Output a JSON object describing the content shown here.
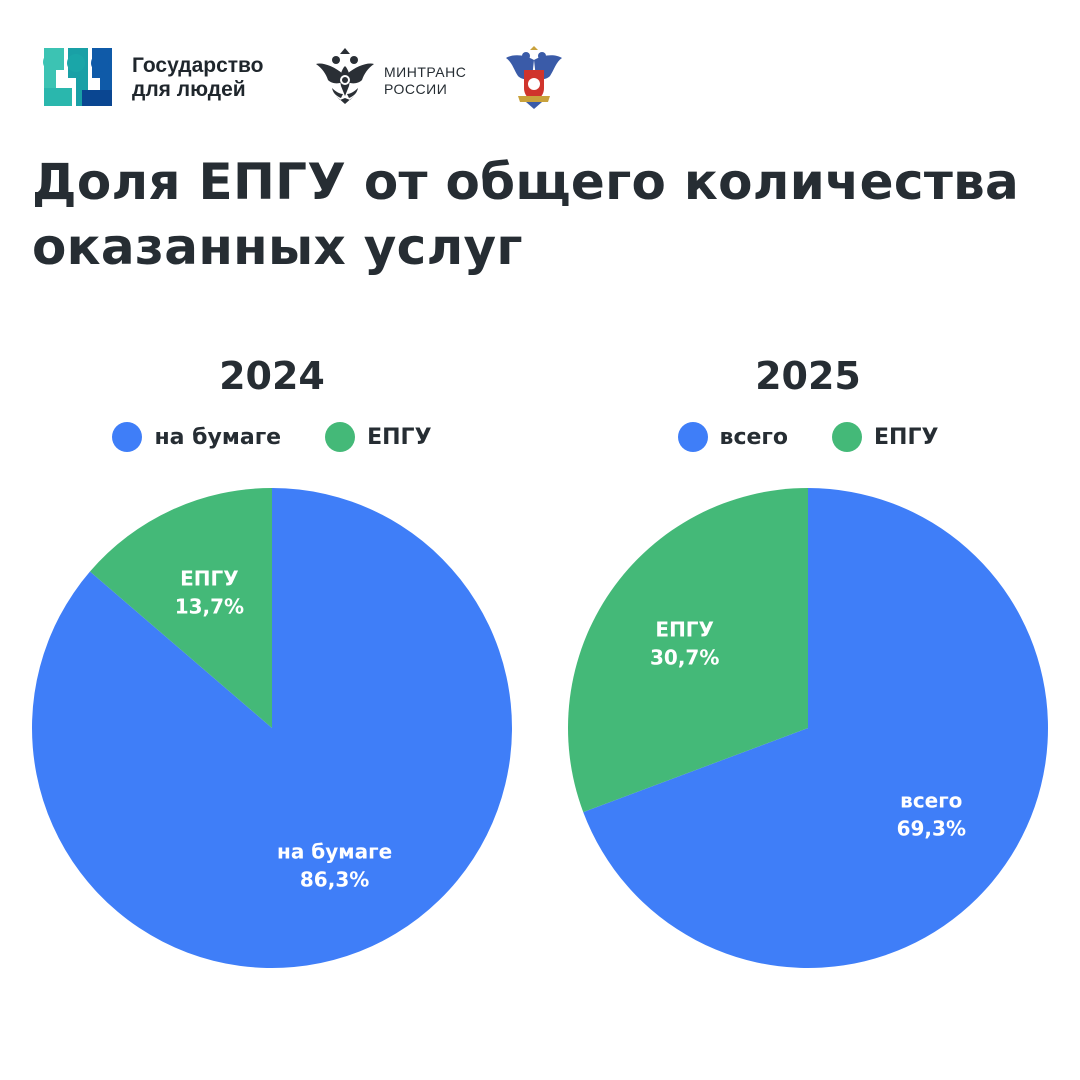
{
  "header": {
    "brand_line1": "Государство",
    "brand_line2": "для людей",
    "ministry_line1": "МИНТРАНС",
    "ministry_line2": "РОССИИ",
    "brand_icon": "brand-logo-icon",
    "ministry_icon": "double-headed-eagle-icon",
    "agency_icon": "eagle-emblem-icon"
  },
  "title": {
    "line1": "Доля ЕПГУ от общего количества",
    "line2": "оказанных услуг"
  },
  "colors": {
    "blue": "#3f7ef8",
    "green": "#44b978",
    "text": "#262d33"
  },
  "chart_data": [
    {
      "type": "pie",
      "title": "2024",
      "legend_position": "top",
      "slices": [
        {
          "label": "на бумаге",
          "value": 86.3,
          "value_label": "86,3%",
          "color": "#3f7ef8"
        },
        {
          "label": "ЕПГУ",
          "value": 13.7,
          "value_label": "13,7%",
          "color": "#44b978"
        }
      ]
    },
    {
      "type": "pie",
      "title": "2025",
      "legend_position": "top",
      "slices": [
        {
          "label": "всего",
          "value": 69.3,
          "value_label": "69,3%",
          "color": "#3f7ef8"
        },
        {
          "label": "ЕПГУ",
          "value": 30.7,
          "value_label": "30,7%",
          "color": "#44b978"
        }
      ]
    }
  ]
}
